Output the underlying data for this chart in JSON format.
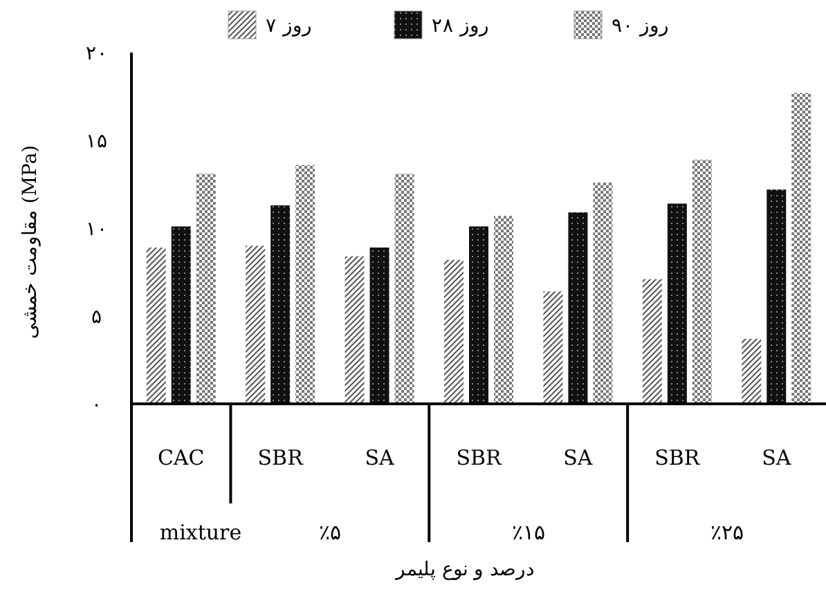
{
  "chart_data": {
    "type": "bar",
    "categories": [
      "CAC",
      "SBR",
      "SA",
      "SBR",
      "SA",
      "SBR",
      "SA"
    ],
    "series": [
      {
        "name": "۷ روز",
        "color": "#555555",
        "values": [
          8.9,
          9.0,
          8.4,
          8.2,
          6.4,
          7.1,
          3.7
        ]
      },
      {
        "name": "۲۸ روز",
        "color": "#111111",
        "values": [
          10.1,
          11.3,
          8.9,
          10.1,
          10.9,
          11.4,
          12.2
        ]
      },
      {
        "name": "۹۰ روز",
        "color": "#777777",
        "values": [
          13.1,
          13.6,
          13.1,
          10.7,
          12.6,
          13.9,
          17.7
        ]
      }
    ],
    "ylim": [
      0,
      20
    ],
    "yticks": [
      {
        "value": 0,
        "label": "۰"
      },
      {
        "value": 5,
        "label": "۵"
      },
      {
        "value": 10,
        "label": "۱۰"
      },
      {
        "value": 15,
        "label": "۱۵"
      },
      {
        "value": 20,
        "label": "۲۰"
      }
    ],
    "ylabel": "مقاومت خمشی (MPa)",
    "xlabel": "درصد و نوع پلیمر",
    "annotations": [
      "mixture",
      "٪۵",
      "٪۱۵",
      "٪۲۵"
    ],
    "legend": "top",
    "grid": false
  }
}
